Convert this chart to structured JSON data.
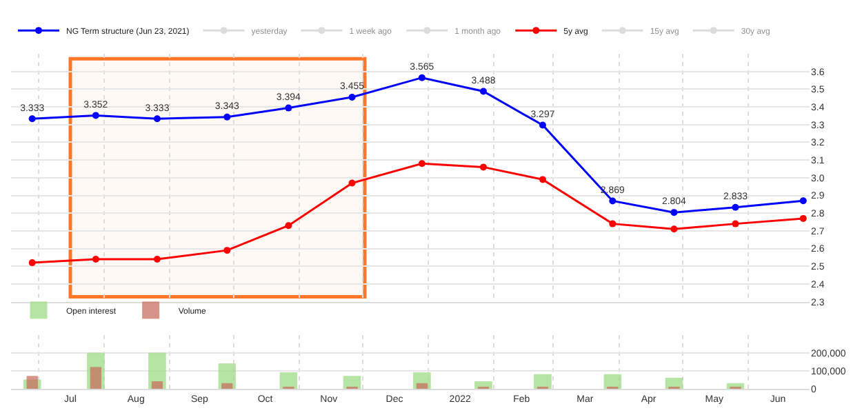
{
  "chart_data": [
    {
      "type": "line",
      "legend": "top",
      "grid": true,
      "marker": "circle",
      "line_style": "solid",
      "tick_labels": "y",
      "x": [
        "2021-06-28",
        "2021-07-28",
        "2021-08-26",
        "2021-09-28",
        "2021-10-27",
        "2021-11-26",
        "2021-12-29",
        "2022-01-27",
        "2022-02-24",
        "2022-03-29",
        "2022-04-27",
        "2022-05-26",
        "2022-06-27"
      ],
      "xlim": [
        "2021-06-18",
        "2022-06-30"
      ],
      "ylim": [
        2.3,
        3.7
      ],
      "yticks": [
        2.3,
        2.4,
        2.5,
        2.6,
        2.7,
        2.8,
        2.9,
        {
          "value": 3.0,
          "label": "3.0"
        },
        3.1,
        3.2,
        3.3,
        3.4,
        3.5,
        3.6
      ],
      "series": [
        {
          "name": "NG Term structure (Jun 23, 2021)",
          "color": "#0000ff",
          "values": [
            3.333,
            3.352,
            3.333,
            3.343,
            3.394,
            3.455,
            3.565,
            3.488,
            3.297,
            2.869,
            2.804,
            2.833,
            2.87
          ],
          "value_labels": [
            "3.333",
            "3.352",
            "3.333",
            "3.343",
            "3.394",
            "3.455",
            "3.565",
            "3.488",
            "3.297",
            "2.869",
            "2.804",
            "2.833",
            null
          ]
        },
        {
          "name": "yesterday",
          "values": [
            null,
            null,
            null,
            null,
            null,
            null,
            null,
            null,
            null,
            null,
            null,
            null,
            null
          ]
        },
        {
          "name": "1 week ago",
          "values": [
            null,
            null,
            null,
            null,
            null,
            null,
            null,
            null,
            null,
            null,
            null,
            null,
            null
          ]
        },
        {
          "name": "1 month ago",
          "values": [
            null,
            null,
            null,
            null,
            null,
            null,
            null,
            null,
            null,
            null,
            null,
            null,
            null
          ]
        },
        {
          "name": "5y avg",
          "color": "#ff0000",
          "values": [
            2.52,
            2.54,
            2.54,
            2.59,
            2.73,
            2.97,
            3.08,
            3.06,
            2.99,
            2.74,
            2.71,
            2.74,
            2.77
          ]
        },
        {
          "name": "15y avg",
          "values": [
            null,
            null,
            null,
            null,
            null,
            null,
            null,
            null,
            null,
            null,
            null,
            null,
            null
          ]
        },
        {
          "name": "30y avg",
          "values": [
            null,
            null,
            null,
            null,
            null,
            null,
            null,
            null,
            null,
            null,
            null,
            null,
            null
          ]
        }
      ],
      "bands": [
        {
          "axis": "x",
          "from": "2021-07-16",
          "to": "2021-12-02",
          "color": "#ff6a13"
        }
      ]
    },
    {
      "type": "bar",
      "legend": "top",
      "grid": true,
      "x": [
        "2021-06-28",
        "2021-07-28",
        "2021-08-26",
        "2021-09-28",
        "2021-10-27",
        "2021-11-26",
        "2021-12-29",
        "2022-01-27",
        "2022-02-24",
        "2022-03-29",
        "2022-04-27",
        "2022-05-26"
      ],
      "xlim": [
        "2021-06-18",
        "2022-06-30"
      ],
      "xticks": [
        {
          "value": "2021-07-16",
          "label": "Jul"
        },
        {
          "value": "2021-08-16",
          "label": "Aug"
        },
        {
          "value": "2021-09-15",
          "label": "Sep"
        },
        {
          "value": "2021-10-16",
          "label": "Oct"
        },
        {
          "value": "2021-11-15",
          "label": "Nov"
        },
        {
          "value": "2021-12-16",
          "label": "Dec"
        },
        {
          "value": "2022-01-16",
          "label": "2022"
        },
        {
          "value": "2022-02-14",
          "label": "Feb"
        },
        {
          "value": "2022-03-16",
          "label": "Mar"
        },
        {
          "value": "2022-04-15",
          "label": "Apr"
        },
        {
          "value": "2022-05-16",
          "label": "May"
        },
        {
          "value": "2022-06-15",
          "label": "Jun"
        }
      ],
      "ylim": [
        0,
        300000
      ],
      "yticks": [
        0,
        {
          "value": 100000,
          "label": "100,000"
        },
        {
          "value": 200000,
          "label": "200,000"
        }
      ],
      "series": [
        {
          "name": "Open interest",
          "color": "#9edc86",
          "values": [
            50000,
            200000,
            200000,
            140000,
            90000,
            70000,
            90000,
            40000,
            80000,
            80000,
            60000,
            30000
          ]
        },
        {
          "name": "Volume",
          "color": "#c9705f",
          "values": [
            70000,
            120000,
            40000,
            30000,
            10000,
            10000,
            30000,
            10000,
            10000,
            10000,
            10000,
            10000
          ]
        }
      ]
    }
  ]
}
